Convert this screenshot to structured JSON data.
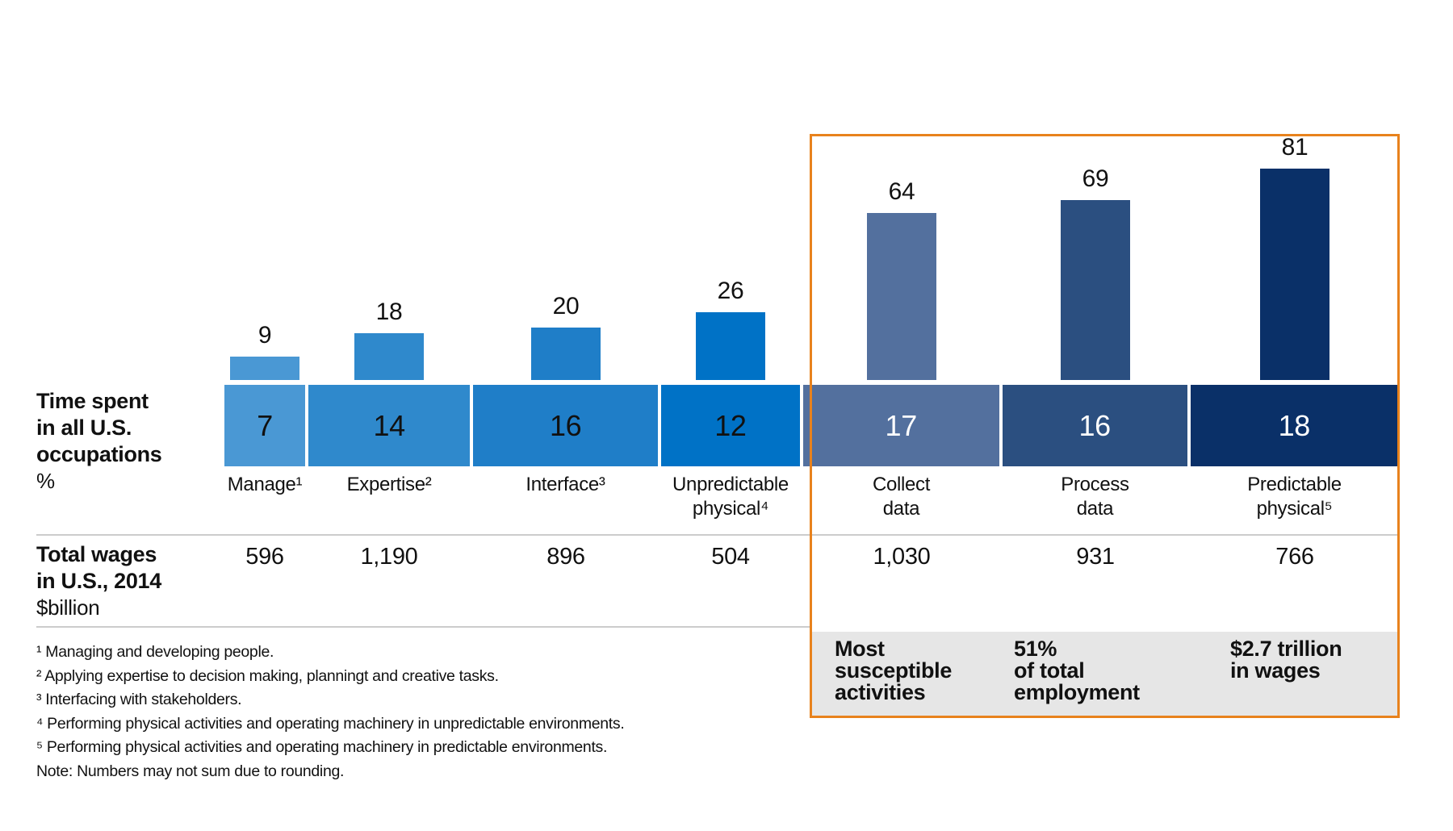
{
  "chart_data": {
    "type": "bar",
    "subtype": "marimekko-band-with-bars",
    "band_total": 100,
    "columns": [
      {
        "label_lines": [
          "Manage¹"
        ],
        "bar_value": 9,
        "time_pct": 7,
        "wages": "596",
        "color": "#4a98d4",
        "band_text_color": "#111111"
      },
      {
        "label_lines": [
          "Expertise²"
        ],
        "bar_value": 18,
        "time_pct": 14,
        "wages": "1,190",
        "color": "#2f89cc",
        "band_text_color": "#111111"
      },
      {
        "label_lines": [
          "Interface³"
        ],
        "bar_value": 20,
        "time_pct": 16,
        "wages": "896",
        "color": "#1f7ec8",
        "band_text_color": "#111111"
      },
      {
        "label_lines": [
          "Unpredictable",
          "physical⁴"
        ],
        "bar_value": 26,
        "time_pct": 12,
        "wages": "504",
        "color": "#0072c6",
        "band_text_color": "#111111"
      },
      {
        "label_lines": [
          "Collect",
          "data"
        ],
        "bar_value": 64,
        "time_pct": 17,
        "wages": "1,030",
        "color": "#53709e",
        "band_text_color": "#ffffff"
      },
      {
        "label_lines": [
          "Process",
          "data"
        ],
        "bar_value": 69,
        "time_pct": 16,
        "wages": "931",
        "color": "#2b4f80",
        "band_text_color": "#ffffff"
      },
      {
        "label_lines": [
          "Predictable",
          "physical⁵"
        ],
        "bar_value": 81,
        "time_pct": 18,
        "wages": "766",
        "color": "#0a3068",
        "band_text_color": "#ffffff"
      }
    ]
  },
  "row_headers": {
    "time": {
      "bold_lines": [
        "Time spent",
        "in all U.S.",
        "occupations"
      ],
      "unit": "%"
    },
    "wages": {
      "bold_lines": [
        "Total wages",
        "in U.S., 2014"
      ],
      "unit": "$billion"
    }
  },
  "highlight": {
    "border_color": "#e8821d",
    "panel_color": "#e6e6e6",
    "stats": [
      [
        "Most",
        "susceptible",
        "activities"
      ],
      [
        "51%",
        "of total",
        "employment"
      ],
      [
        "$2.7 trillion",
        "in wages"
      ]
    ]
  },
  "footnotes": [
    "¹ Managing and developing people.",
    "² Applying expertise to decision making, planningt and creative tasks.",
    "³ Interfacing with stakeholders.",
    "⁴ Performing physical activities and operating machinery in unpredictable environments.",
    "⁵ Performing physical activities and operating machinery in predictable environments.",
    "Note: Numbers may not sum due to rounding."
  ]
}
